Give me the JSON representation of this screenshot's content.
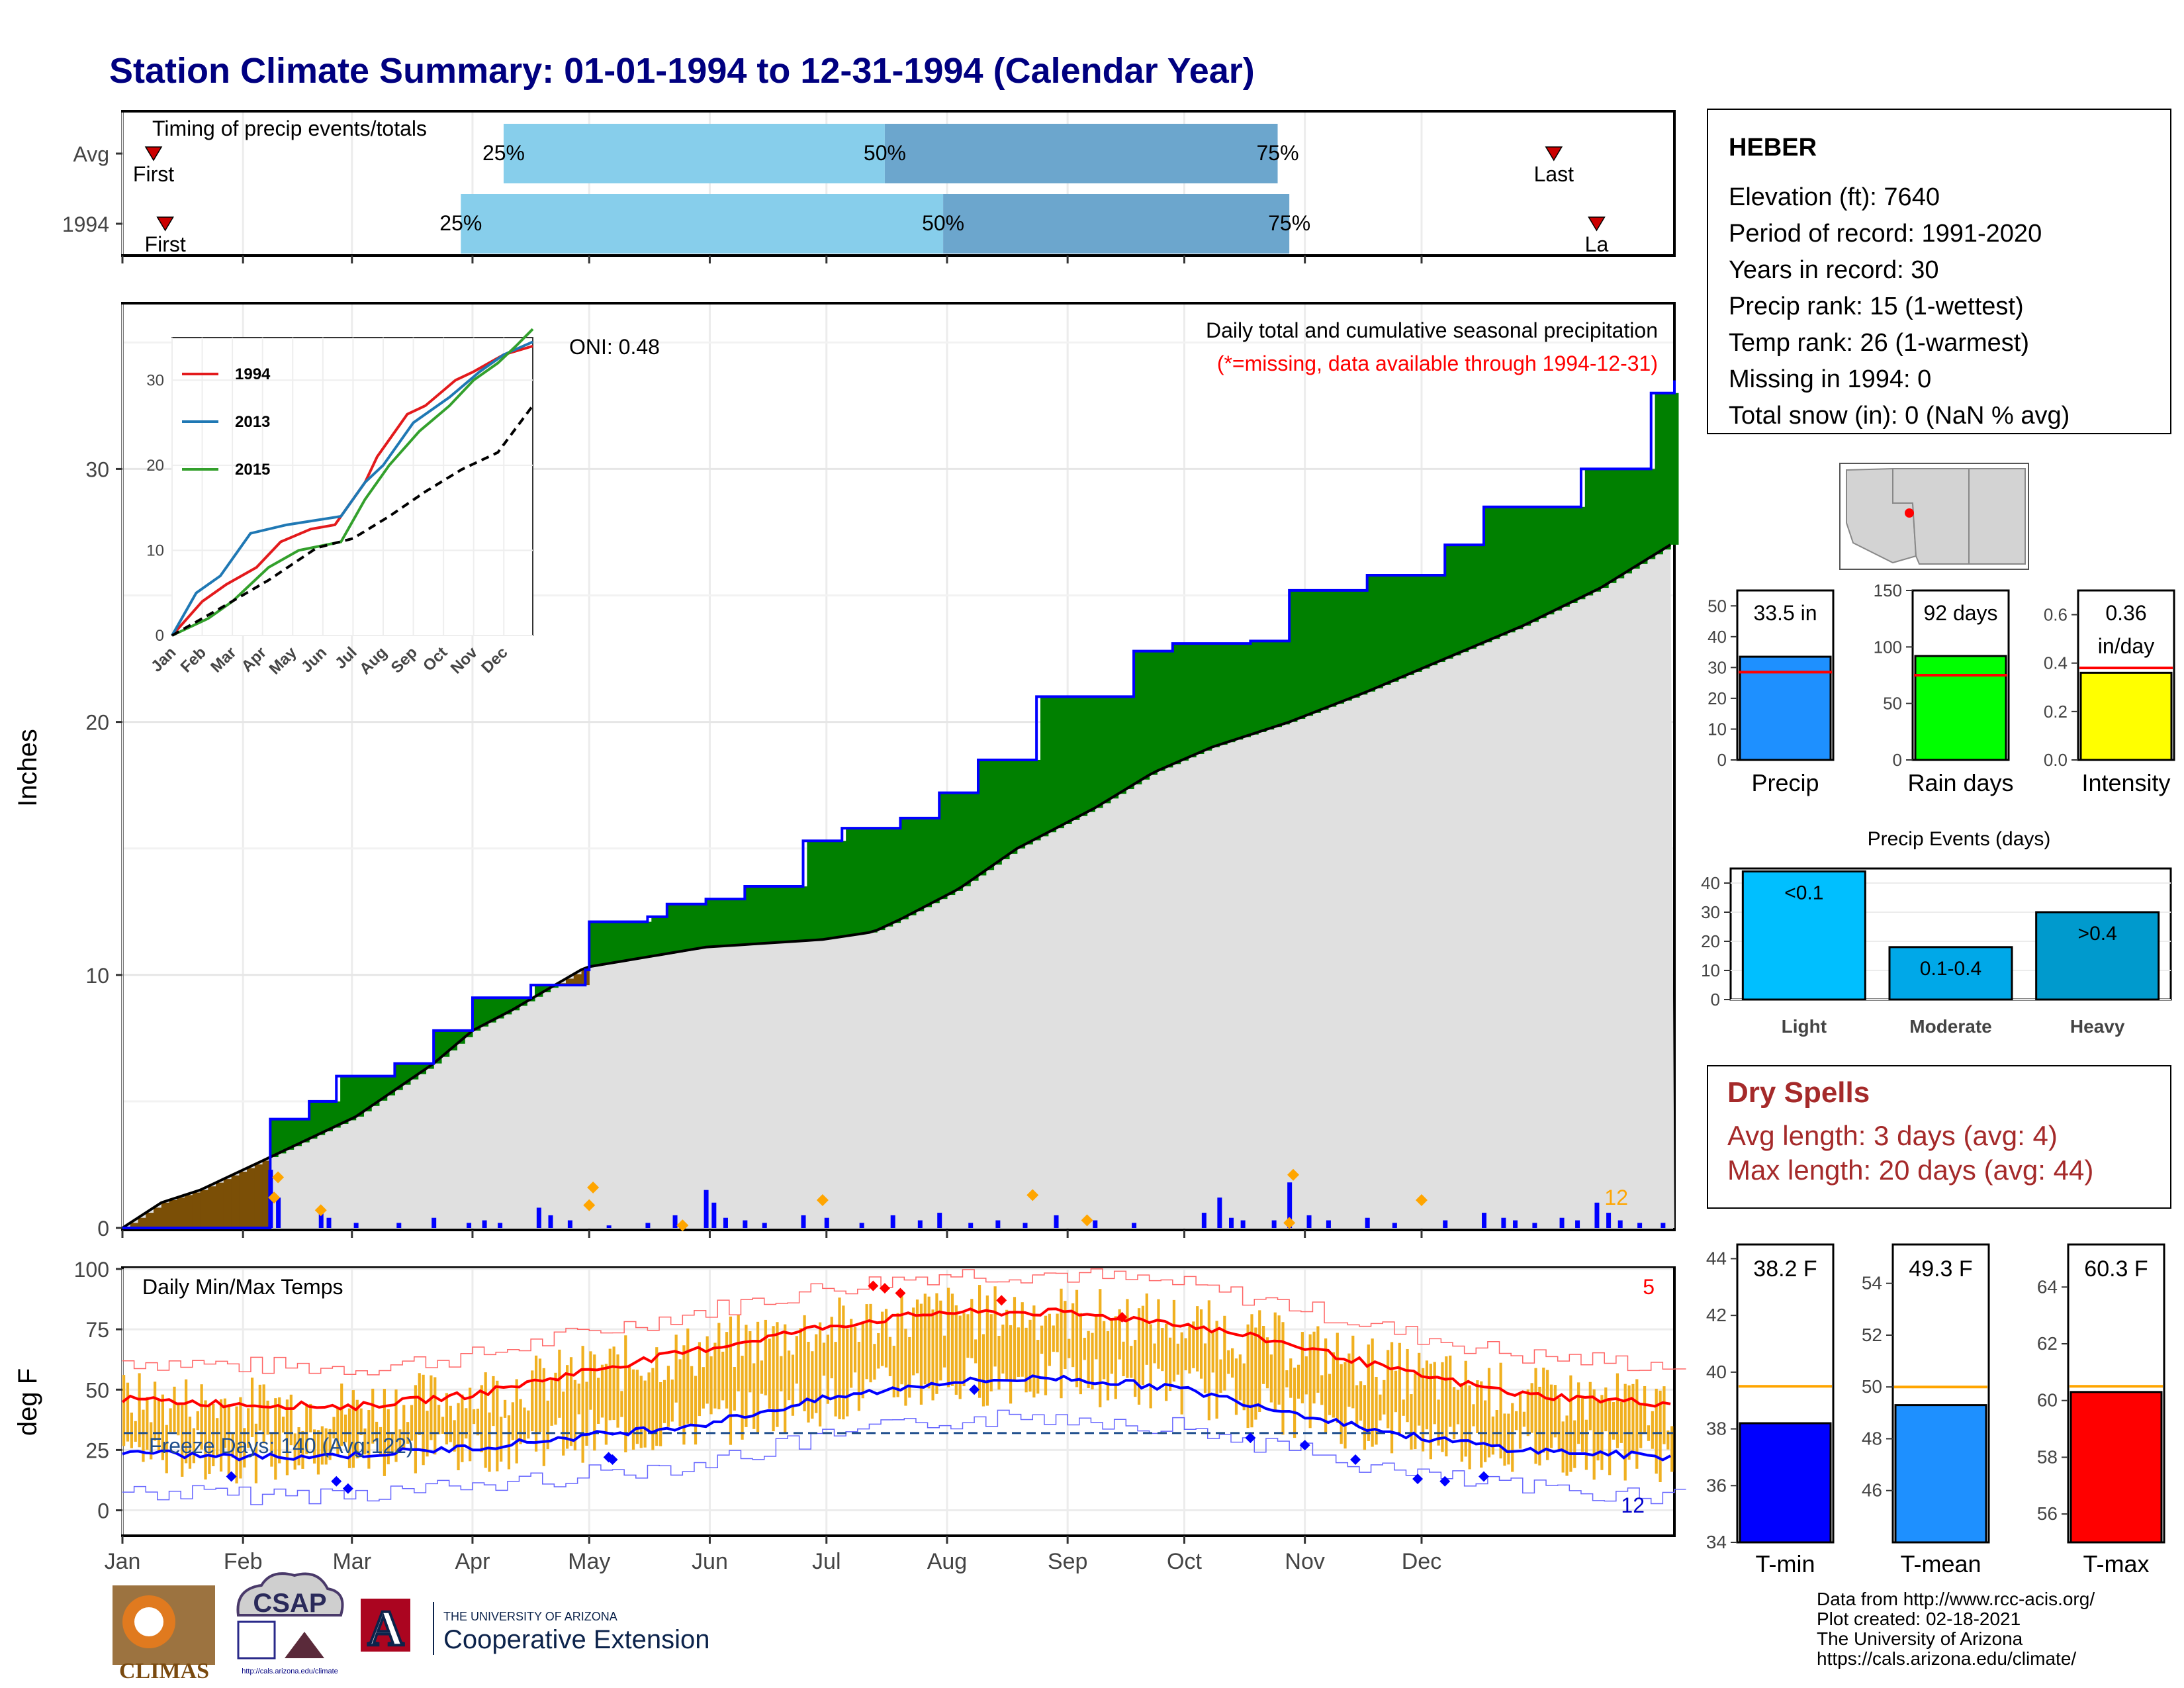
{
  "title": "Station Climate Summary: 01-01-1994 to 12-31-1994 (Calendar Year)",
  "colors": {
    "title": "#000080",
    "q_light": "#87ceeb",
    "q_dark": "#6ca6cd",
    "marker": "#cc0000",
    "green": "#008000",
    "brown": "#7b4f06",
    "gray": "#e0e0e0",
    "blue": "#0000ff",
    "orange": "#ffa500",
    "bar_temp": "#f0b020",
    "red": "#ff0000",
    "dry": "#a52a2a"
  },
  "months": [
    "Jan",
    "Feb",
    "Mar",
    "Apr",
    "May",
    "Jun",
    "Jul",
    "Aug",
    "Sep",
    "Oct",
    "Nov",
    "Dec"
  ],
  "timing": {
    "title": "Timing of precip events/totals",
    "rows": [
      {
        "label": "Avg",
        "first_doy": 8,
        "q25_doy": 98,
        "q50_doy": 196,
        "q75_doy": 297,
        "last_doy": 368,
        "first_label": "First",
        "last_label": "Last"
      },
      {
        "label": "1994",
        "first_doy": 11,
        "q25_doy": 87,
        "q50_doy": 211,
        "q75_doy": 300,
        "last_doy": 379,
        "first_label": "First",
        "last_label": "La"
      }
    ],
    "q_labels": [
      "25%",
      "50%",
      "75%"
    ]
  },
  "precip_panel": {
    "ylabel": "Inches",
    "ylim": [
      0,
      36.5
    ],
    "yticks": [
      0,
      10,
      20,
      30
    ],
    "header": "Daily total and cumulative seasonal precipitation",
    "missing_note": "(*=missing, data available through 1994-12-31)",
    "oni": "ONI: 0.48",
    "count_label": "12",
    "actual_cum": [
      [
        0,
        0
      ],
      [
        38,
        4.3
      ],
      [
        48,
        5.0
      ],
      [
        55,
        6.0
      ],
      [
        70,
        6.5
      ],
      [
        80,
        7.8
      ],
      [
        90,
        9.1
      ],
      [
        105,
        9.6
      ],
      [
        119,
        10.2
      ],
      [
        120,
        12.1
      ],
      [
        135,
        12.3
      ],
      [
        140,
        12.8
      ],
      [
        150,
        13.0
      ],
      [
        160,
        13.5
      ],
      [
        175,
        15.3
      ],
      [
        185,
        15.8
      ],
      [
        200,
        16.2
      ],
      [
        210,
        17.2
      ],
      [
        220,
        18.5
      ],
      [
        235,
        21.0
      ],
      [
        260,
        22.8
      ],
      [
        270,
        23.1
      ],
      [
        290,
        23.2
      ],
      [
        300,
        25.2
      ],
      [
        320,
        25.8
      ],
      [
        340,
        27.0
      ],
      [
        350,
        28.5
      ],
      [
        375,
        30.0
      ],
      [
        393,
        33.0
      ],
      [
        399,
        33.5
      ]
    ],
    "avg_cum": [
      [
        0,
        0
      ],
      [
        10,
        1.0
      ],
      [
        20,
        1.5
      ],
      [
        38,
        2.8
      ],
      [
        60,
        4.4
      ],
      [
        80,
        6.5
      ],
      [
        90,
        7.8
      ],
      [
        100,
        8.6
      ],
      [
        119,
        10.3
      ],
      [
        150,
        11.1
      ],
      [
        180,
        11.4
      ],
      [
        193,
        11.7
      ],
      [
        200,
        12.2
      ],
      [
        215,
        13.4
      ],
      [
        230,
        15.0
      ],
      [
        250,
        16.6
      ],
      [
        265,
        18.0
      ],
      [
        280,
        19.0
      ],
      [
        300,
        20.0
      ],
      [
        320,
        21.2
      ],
      [
        340,
        22.5
      ],
      [
        360,
        23.8
      ],
      [
        380,
        25.3
      ],
      [
        399,
        27.1
      ]
    ],
    "daily": [
      [
        38,
        2.3
      ],
      [
        40,
        1.2
      ],
      [
        51,
        0.6
      ],
      [
        53,
        0.4
      ],
      [
        60,
        0.2
      ],
      [
        71,
        0.2
      ],
      [
        80,
        0.4
      ],
      [
        89,
        0.2
      ],
      [
        93,
        0.3
      ],
      [
        97,
        0.2
      ],
      [
        107,
        0.8
      ],
      [
        110,
        0.5
      ],
      [
        115,
        0.3
      ],
      [
        125,
        0.1
      ],
      [
        135,
        0.2
      ],
      [
        142,
        0.5
      ],
      [
        150,
        1.5
      ],
      [
        152,
        1.0
      ],
      [
        155,
        0.4
      ],
      [
        160,
        0.3
      ],
      [
        165,
        0.2
      ],
      [
        175,
        0.5
      ],
      [
        181,
        0.4
      ],
      [
        190,
        0.2
      ],
      [
        198,
        0.5
      ],
      [
        205,
        0.3
      ],
      [
        210,
        0.6
      ],
      [
        218,
        0.2
      ],
      [
        225,
        0.3
      ],
      [
        232,
        0.2
      ],
      [
        240,
        0.5
      ],
      [
        250,
        0.3
      ],
      [
        260,
        0.2
      ],
      [
        278,
        0.6
      ],
      [
        282,
        1.2
      ],
      [
        285,
        0.4
      ],
      [
        288,
        0.3
      ],
      [
        296,
        0.3
      ],
      [
        300,
        1.8
      ],
      [
        305,
        0.5
      ],
      [
        310,
        0.3
      ],
      [
        320,
        0.4
      ],
      [
        327,
        0.2
      ],
      [
        340,
        0.3
      ],
      [
        350,
        0.6
      ],
      [
        355,
        0.4
      ],
      [
        358,
        0.3
      ],
      [
        363,
        0.2
      ],
      [
        370,
        0.4
      ],
      [
        374,
        0.3
      ],
      [
        379,
        1.0
      ],
      [
        382,
        0.6
      ],
      [
        385,
        0.3
      ],
      [
        390,
        0.2
      ],
      [
        396,
        0.2
      ]
    ],
    "markers": [
      [
        40,
        2.0
      ],
      [
        39,
        1.2
      ],
      [
        51,
        0.7
      ],
      [
        120,
        0.9
      ],
      [
        121,
        1.6
      ],
      [
        144,
        0.1
      ],
      [
        180,
        1.1
      ],
      [
        234,
        1.3
      ],
      [
        248,
        0.3
      ],
      [
        301,
        2.1
      ],
      [
        300,
        0.2
      ],
      [
        334,
        1.1
      ]
    ]
  },
  "inset": {
    "ylim": [
      0,
      35
    ],
    "yticks": [
      0,
      10,
      20,
      30
    ],
    "series": [
      {
        "name": "1994",
        "color": "#e31a1c",
        "values": [
          [
            0,
            0
          ],
          [
            25,
            4
          ],
          [
            45,
            6
          ],
          [
            70,
            8
          ],
          [
            90,
            11
          ],
          [
            115,
            12.5
          ],
          [
            135,
            13
          ],
          [
            160,
            18
          ],
          [
            170,
            21
          ],
          [
            180,
            23
          ],
          [
            195,
            26
          ],
          [
            210,
            27
          ],
          [
            235,
            30
          ],
          [
            250,
            31
          ],
          [
            275,
            33
          ],
          [
            299,
            34
          ]
        ]
      },
      {
        "name": "2013",
        "color": "#1f78b4",
        "values": [
          [
            0,
            0
          ],
          [
            20,
            5
          ],
          [
            40,
            7
          ],
          [
            55,
            10
          ],
          [
            65,
            12
          ],
          [
            95,
            13
          ],
          [
            140,
            14
          ],
          [
            160,
            18
          ],
          [
            175,
            20
          ],
          [
            200,
            25
          ],
          [
            230,
            28
          ],
          [
            255,
            31
          ],
          [
            275,
            33
          ],
          [
            299,
            34.5
          ]
        ]
      },
      {
        "name": "2015",
        "color": "#33a02c",
        "values": [
          [
            0,
            0
          ],
          [
            30,
            2
          ],
          [
            50,
            4
          ],
          [
            80,
            8
          ],
          [
            105,
            10
          ],
          [
            140,
            11
          ],
          [
            160,
            16
          ],
          [
            180,
            20
          ],
          [
            205,
            24
          ],
          [
            230,
            27
          ],
          [
            250,
            30
          ],
          [
            270,
            32
          ],
          [
            285,
            34
          ],
          [
            299,
            36
          ]
        ]
      },
      {
        "name": "avg",
        "color": "#000000",
        "values": [
          [
            0,
            0
          ],
          [
            40,
            3.2
          ],
          [
            80,
            6.5
          ],
          [
            120,
            10.3
          ],
          [
            150,
            11.4
          ],
          [
            180,
            14
          ],
          [
            210,
            16.9
          ],
          [
            240,
            19.5
          ],
          [
            270,
            21.5
          ],
          [
            299,
            27
          ]
        ]
      }
    ]
  },
  "temp_panel": {
    "ylabel": "deg F",
    "ylim": [
      -10,
      100
    ],
    "yticks": [
      0,
      25,
      50,
      75,
      100
    ],
    "title": "Daily Min/Max Temps",
    "freeze": "Freeze Days: 140 (Avg:122)",
    "freeze_line": 32,
    "count_hot": "5",
    "count_cold": "12",
    "normal_max": [
      [
        0,
        46
      ],
      [
        30,
        44
      ],
      [
        60,
        43
      ],
      [
        90,
        48
      ],
      [
        120,
        58
      ],
      [
        150,
        67
      ],
      [
        180,
        76
      ],
      [
        210,
        82
      ],
      [
        240,
        82
      ],
      [
        270,
        78
      ],
      [
        300,
        69
      ],
      [
        330,
        57
      ],
      [
        360,
        48
      ],
      [
        399,
        44
      ]
    ],
    "normal_min": [
      [
        0,
        24
      ],
      [
        30,
        22
      ],
      [
        60,
        23
      ],
      [
        90,
        26
      ],
      [
        120,
        31
      ],
      [
        150,
        36
      ],
      [
        180,
        46
      ],
      [
        210,
        53
      ],
      [
        240,
        55
      ],
      [
        270,
        51
      ],
      [
        300,
        41
      ],
      [
        330,
        31
      ],
      [
        360,
        25
      ],
      [
        399,
        22
      ]
    ],
    "blue_dots": [
      [
        28,
        14
      ],
      [
        55,
        12
      ],
      [
        58,
        9
      ],
      [
        125,
        22
      ],
      [
        126,
        21
      ],
      [
        219,
        50
      ],
      [
        290,
        30
      ],
      [
        304,
        27
      ],
      [
        317,
        21
      ],
      [
        333,
        13
      ],
      [
        340,
        12
      ],
      [
        350,
        14
      ]
    ],
    "red_dots": [
      [
        193,
        93
      ],
      [
        196,
        92
      ],
      [
        200,
        90
      ],
      [
        226,
        87
      ],
      [
        257,
        80
      ]
    ]
  },
  "station": {
    "name": "HEBER",
    "lines": [
      "Elevation (ft): 7640",
      "Period of record: 1991-2020",
      "Years in record: 30",
      "Precip rank: 15 (1-wettest)",
      "Temp rank: 26 (1-warmest)",
      "Missing in 1994: 0",
      "Total snow (in): 0 (NaN % avg)"
    ]
  },
  "mini_bars": [
    {
      "label": "Precip",
      "value": 33.5,
      "avg": 28.5,
      "text": "33.5 in",
      "ymax": 55,
      "yticks": [
        0,
        10,
        20,
        30,
        40,
        50
      ],
      "color": "#1e90ff"
    },
    {
      "label": "Rain days",
      "value": 92,
      "avg": 75,
      "text": "92 days",
      "ymax": 150,
      "yticks": [
        0,
        50,
        100,
        150
      ],
      "color": "#00ff00"
    },
    {
      "label": "Intensity",
      "value": 0.36,
      "avg": 0.38,
      "text": "0.36",
      "text2": "in/day",
      "ymax": 0.7,
      "yticks": [
        "0.0",
        "0.2",
        "0.4",
        "0.6"
      ],
      "color": "#ffff00"
    }
  ],
  "events": {
    "title": "Precip Events (days)",
    "categories": [
      "Light",
      "Moderate",
      "Heavy"
    ],
    "labels": [
      "<0.1",
      "0.1-0.4",
      ">0.4"
    ],
    "values": [
      44,
      18,
      30
    ],
    "colors": [
      "#00bfff",
      "#00a8e8",
      "#009acd"
    ],
    "ymax": 45,
    "yticks": [
      0,
      10,
      20,
      30,
      40
    ]
  },
  "dry": {
    "title": "Dry Spells",
    "line1": "Avg length: 3 days (avg: 4)",
    "line2": "Max length: 20 days (avg: 44)"
  },
  "temp_bars": [
    {
      "label": "T-min",
      "value": 38.2,
      "avg": 39.5,
      "text": "38.2 F",
      "ymin": 34,
      "ymax": 44.5,
      "yticks": [
        34,
        36,
        38,
        40,
        42,
        44
      ],
      "color": "#0000ff"
    },
    {
      "label": "T-mean",
      "value": 49.3,
      "avg": 50,
      "text": "49.3 F",
      "ymin": 44,
      "ymax": 55.5,
      "yticks": [
        46,
        48,
        50,
        52,
        54
      ],
      "color": "#1e90ff"
    },
    {
      "label": "T-max",
      "value": 60.3,
      "avg": 60.5,
      "text": "60.3 F",
      "ymin": 55,
      "ymax": 65.5,
      "yticks": [
        56,
        58,
        60,
        62,
        64
      ],
      "color": "#ff0000"
    }
  ],
  "credits": [
    "Data from http://www.rcc-acis.org/",
    "Plot created: 02-18-2021",
    "The University of Arizona",
    "https://cals.arizona.edu/climate/"
  ],
  "logos": {
    "climas": "CLIMAS",
    "csap": "CSAP",
    "csap_url": "http://cals.arizona.edu/climate",
    "ua_top": "THE UNIVERSITY OF ARIZONA",
    "ua_bottom": "Cooperative Extension",
    "ua_letter": "A"
  }
}
